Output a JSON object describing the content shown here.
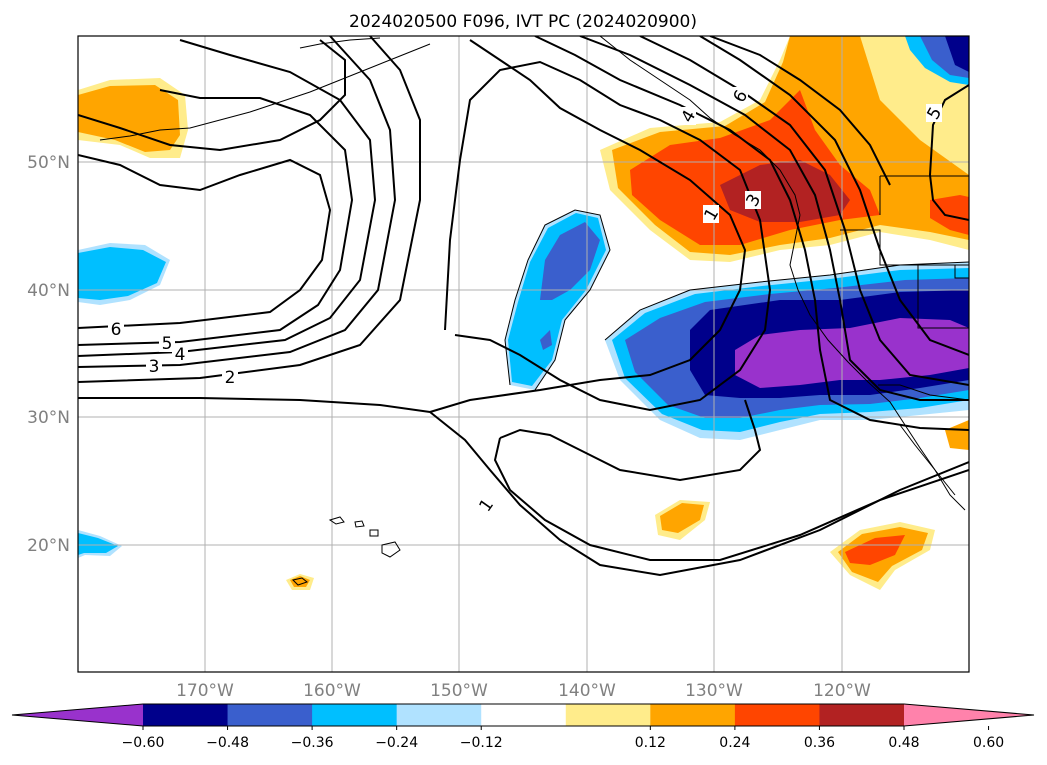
{
  "title": "2024020500 F096, IVT PC (2024020900)",
  "lat_labels": [
    "50°N",
    "40°N",
    "30°N",
    "20°N"
  ],
  "lon_labels": [
    "170°W",
    "160°W",
    "150°W",
    "140°W",
    "130°W",
    "120°W"
  ],
  "contour_labels": [
    "6",
    "5",
    "4",
    "3",
    "2",
    "1",
    "1",
    "3",
    "4",
    "6",
    "5"
  ],
  "colorbar": {
    "ticks": [
      "−0.60",
      "−0.48",
      "−0.36",
      "−0.24",
      "−0.12",
      "0.12",
      "0.24",
      "0.36",
      "0.48",
      "0.60"
    ],
    "colors": [
      "#9932cc",
      "#00008b",
      "#3a5fcd",
      "#00bfff",
      "#b0e2ff",
      "#ffffff",
      "#ffec8b",
      "#ffa500",
      "#ff4500",
      "#b22222",
      "#ff82ab"
    ]
  },
  "field_colors": {
    "neg_1": "#b0e2ff",
    "neg_2": "#00bfff",
    "neg_3": "#3a5fcd",
    "neg_4": "#00008b",
    "neg_5": "#9932cc",
    "pos_1": "#ffec8b",
    "pos_2": "#ffa500",
    "pos_3": "#ff4500",
    "pos_4": "#b22222"
  }
}
